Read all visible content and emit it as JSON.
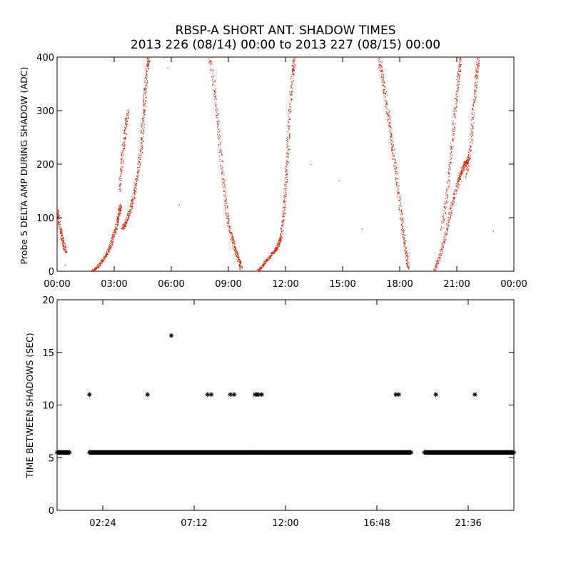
{
  "chart_data": [
    {
      "type": "scatter",
      "title": "RBSP-A SHORT ANT. SHADOW TIMES",
      "subtitle": "2013 226 (08/14) 00:00 to 2013 227 (08/15) 00:00",
      "xlabel": "",
      "ylabel": "Probe 5 DELTA AMP DURING SHADOW (ADC)",
      "xlim": [
        0,
        24
      ],
      "ylim": [
        0,
        400
      ],
      "x_unit": "hours",
      "xticks": [
        0,
        3,
        6,
        9,
        12,
        15,
        18,
        21,
        24
      ],
      "xtick_labels": [
        "00:00",
        "03:00",
        "06:00",
        "09:00",
        "12:00",
        "15:00",
        "18:00",
        "21:00",
        "00:00"
      ],
      "yticks": [
        0,
        100,
        200,
        300,
        400
      ],
      "ytick_labels": [
        "0",
        "100",
        "200",
        "300",
        "400"
      ],
      "marker_color": "#dd2200",
      "series": [
        {
          "name": "rise-1a",
          "points": [
            [
              1.8,
              0
            ],
            [
              2.1,
              8
            ],
            [
              2.4,
              22
            ],
            [
              2.7,
              40
            ],
            [
              2.9,
              60
            ],
            [
              3.1,
              85
            ],
            [
              3.25,
              110
            ],
            [
              3.3,
              125
            ]
          ]
        },
        {
          "name": "rise-1b",
          "points": [
            [
              3.4,
              80
            ],
            [
              3.6,
              90
            ],
            [
              3.8,
              110
            ],
            [
              4.0,
              140
            ],
            [
              4.2,
              180
            ],
            [
              4.4,
              230
            ],
            [
              4.5,
              280
            ],
            [
              4.6,
              330
            ],
            [
              4.7,
              380
            ],
            [
              4.8,
              400
            ]
          ]
        },
        {
          "name": "rise-1c",
          "points": [
            [
              3.25,
              150
            ],
            [
              3.4,
              210
            ],
            [
              3.55,
              260
            ],
            [
              3.7,
              300
            ]
          ]
        },
        {
          "name": "fall-0",
          "points": [
            [
              0.0,
              115
            ],
            [
              0.15,
              80
            ],
            [
              0.3,
              55
            ],
            [
              0.45,
              35
            ]
          ]
        },
        {
          "name": "fall-1",
          "points": [
            [
              8.0,
              400
            ],
            [
              8.3,
              330
            ],
            [
              8.5,
              250
            ],
            [
              8.7,
              170
            ],
            [
              8.9,
              110
            ],
            [
              9.1,
              70
            ],
            [
              9.3,
              45
            ],
            [
              9.5,
              25
            ],
            [
              9.65,
              5
            ]
          ]
        },
        {
          "name": "rise-2",
          "points": [
            [
              10.5,
              0
            ],
            [
              10.8,
              12
            ],
            [
              11.1,
              25
            ],
            [
              11.4,
              38
            ],
            [
              11.6,
              48
            ],
            [
              11.75,
              65
            ],
            [
              11.9,
              110
            ],
            [
              12.0,
              170
            ],
            [
              12.1,
              230
            ],
            [
              12.2,
              300
            ],
            [
              12.35,
              370
            ],
            [
              12.45,
              400
            ]
          ]
        },
        {
          "name": "fall-2",
          "points": [
            [
              16.9,
              400
            ],
            [
              17.1,
              360
            ],
            [
              17.3,
              310
            ],
            [
              17.5,
              260
            ],
            [
              17.7,
              210
            ],
            [
              17.9,
              150
            ],
            [
              18.1,
              90
            ],
            [
              18.3,
              40
            ],
            [
              18.45,
              5
            ]
          ]
        },
        {
          "name": "rise-3a",
          "points": [
            [
              19.8,
              0
            ],
            [
              20.1,
              30
            ],
            [
              20.4,
              70
            ],
            [
              20.7,
              120
            ],
            [
              21.0,
              160
            ],
            [
              21.2,
              185
            ],
            [
              21.4,
              200
            ],
            [
              21.6,
              210
            ]
          ]
        },
        {
          "name": "rise-3b",
          "points": [
            [
              20.2,
              80
            ],
            [
              20.5,
              150
            ],
            [
              20.7,
              230
            ],
            [
              20.9,
              300
            ],
            [
              21.05,
              360
            ],
            [
              21.2,
              400
            ]
          ]
        },
        {
          "name": "rise-3c",
          "points": [
            [
              21.5,
              180
            ],
            [
              21.7,
              230
            ],
            [
              21.85,
              300
            ],
            [
              22.0,
              360
            ],
            [
              22.1,
              400
            ]
          ]
        },
        {
          "name": "scatter",
          "points": [
            [
              5.8,
              380
            ],
            [
              6.4,
              125
            ],
            [
              13.3,
              200
            ],
            [
              14.8,
              170
            ],
            [
              16.0,
              80
            ],
            [
              22.9,
              75
            ],
            [
              0.4,
              12
            ],
            [
              5.6,
              400
            ]
          ]
        }
      ]
    },
    {
      "type": "scatter",
      "title": "",
      "xlabel": "",
      "ylabel": "TIME BETWEEN SHADOWS (SEC)",
      "xlim": [
        0,
        24
      ],
      "ylim": [
        0,
        20
      ],
      "x_unit": "hours",
      "xticks": [
        2.4,
        7.2,
        12.0,
        16.8,
        21.6
      ],
      "xtick_labels": [
        "02:24",
        "07:12",
        "12:00",
        "16:48",
        "21:36"
      ],
      "yticks": [
        0,
        5,
        10,
        15,
        20
      ],
      "ytick_labels": [
        "0",
        "5",
        "10",
        "15",
        "20"
      ],
      "marker": "*",
      "marker_color": "#000000",
      "baseline_segments": [
        [
          0.0,
          0.65
        ],
        [
          1.7,
          18.6
        ],
        [
          19.3,
          24.0
        ]
      ],
      "baseline_value": 5.5,
      "points": [
        [
          1.7,
          11.0
        ],
        [
          4.75,
          11.0
        ],
        [
          6.0,
          16.6
        ],
        [
          7.9,
          11.0
        ],
        [
          8.1,
          11.0
        ],
        [
          9.1,
          11.0
        ],
        [
          9.3,
          11.0
        ],
        [
          10.4,
          11.0
        ],
        [
          10.5,
          11.0
        ],
        [
          10.6,
          11.0
        ],
        [
          10.75,
          11.0
        ],
        [
          10.45,
          5.5
        ],
        [
          17.8,
          11.0
        ],
        [
          17.95,
          11.0
        ],
        [
          19.9,
          11.0
        ],
        [
          21.95,
          11.0
        ]
      ]
    }
  ]
}
